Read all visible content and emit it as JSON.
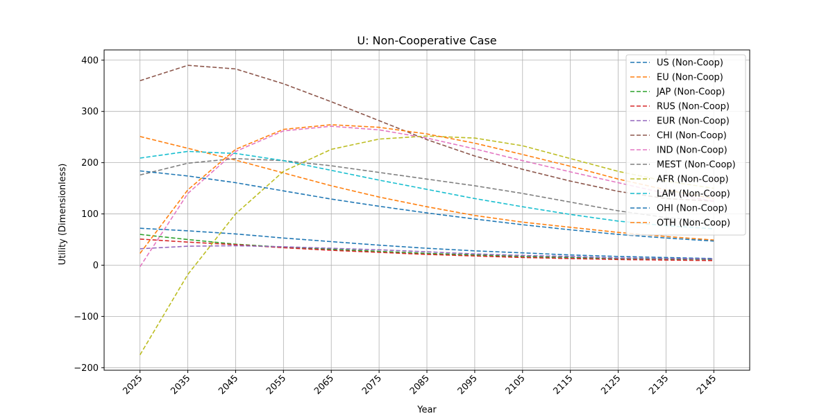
{
  "chart_data": {
    "type": "line",
    "title": "U: Non-Cooperative Case",
    "xlabel": "Year",
    "ylabel": "Utility (Dimensionless)",
    "x": [
      2025,
      2035,
      2045,
      2055,
      2065,
      2075,
      2085,
      2095,
      2105,
      2115,
      2125,
      2135,
      2145
    ],
    "xlim": [
      2017.5,
      2152.5
    ],
    "ylim": [
      -205,
      420
    ],
    "yticks": [
      -200,
      -100,
      0,
      100,
      200,
      300,
      400
    ],
    "grid": true,
    "legend_position": "top-right",
    "line_style": "dashed",
    "series": [
      {
        "name": "US (Non-Coop)",
        "color": "#1f77b4",
        "values": [
          72,
          67,
          61,
          53,
          46,
          39,
          33,
          28,
          24,
          20,
          17,
          15,
          13
        ]
      },
      {
        "name": "EU (Non-Coop)",
        "color": "#ff7f0e",
        "values": [
          251,
          228,
          205,
          180,
          155,
          133,
          114,
          97,
          84,
          74,
          64,
          56,
          49
        ]
      },
      {
        "name": "JAP (Non-Coop)",
        "color": "#2ca02c",
        "values": [
          60,
          50,
          41,
          35,
          31,
          27,
          23,
          20,
          17,
          15,
          13,
          12,
          11
        ]
      },
      {
        "name": "RUS (Non-Coop)",
        "color": "#d62728",
        "values": [
          51,
          45,
          40,
          34,
          29,
          25,
          21,
          18,
          15,
          13,
          11,
          10,
          9
        ]
      },
      {
        "name": "EUR (Non-Coop)",
        "color": "#9467bd",
        "values": [
          32,
          37,
          38,
          36,
          33,
          30,
          26,
          22,
          19,
          17,
          14,
          13,
          12
        ]
      },
      {
        "name": "CHI (Non-Coop)",
        "color": "#8c564b",
        "values": [
          360,
          390,
          383,
          354,
          319,
          282,
          245,
          213,
          187,
          164,
          144,
          130,
          125
        ]
      },
      {
        "name": "IND (Non-Coop)",
        "color": "#e377c2",
        "values": [
          -3,
          140,
          222,
          262,
          271,
          264,
          248,
          227,
          204,
          182,
          161,
          140,
          125
        ]
      },
      {
        "name": "MEST (Non-Coop)",
        "color": "#7f7f7f",
        "values": [
          176,
          199,
          208,
          204,
          194,
          181,
          168,
          155,
          140,
          123,
          106,
          93,
          85
        ]
      },
      {
        "name": "AFR (Non-Coop)",
        "color": "#bcbd22",
        "values": [
          -175,
          -18,
          100,
          183,
          226,
          246,
          252,
          248,
          233,
          208,
          183,
          164,
          150
        ]
      },
      {
        "name": "LAM (Non-Coop)",
        "color": "#17becf",
        "values": [
          209,
          222,
          218,
          204,
          185,
          166,
          148,
          130,
          114,
          99,
          86,
          77,
          71
        ]
      },
      {
        "name": "OHI (Non-Coop)",
        "color": "#1f77b4",
        "values": [
          184,
          174,
          161,
          145,
          129,
          115,
          102,
          90,
          79,
          69,
          60,
          53,
          47
        ]
      },
      {
        "name": "OTH (Non-Coop)",
        "color": "#ff7f0e",
        "values": [
          23,
          147,
          226,
          265,
          274,
          269,
          256,
          238,
          216,
          193,
          168,
          147,
          130
        ]
      }
    ]
  }
}
